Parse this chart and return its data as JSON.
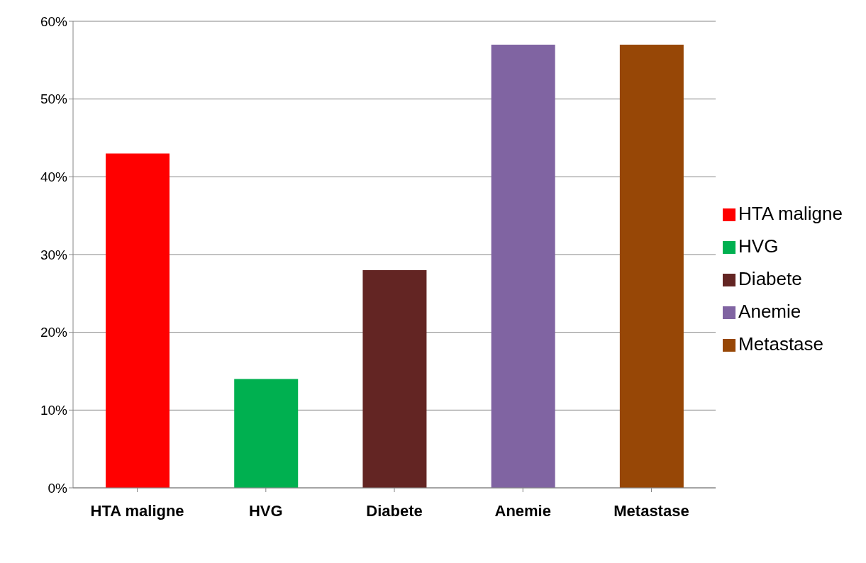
{
  "chart_data": {
    "type": "bar",
    "stacked": true,
    "categories": [
      "HTA maligne",
      "HVG",
      "Diabete",
      "Anemie",
      "Metastase"
    ],
    "series": [
      {
        "name": "HTA maligne",
        "color": "#ff0000",
        "values": [
          43,
          null,
          null,
          null,
          null
        ]
      },
      {
        "name": "HVG",
        "color": "#00b050",
        "values": [
          null,
          14,
          null,
          null,
          null
        ]
      },
      {
        "name": "Diabete",
        "color": "#632523",
        "values": [
          null,
          null,
          28,
          null,
          null
        ]
      },
      {
        "name": "Anemie",
        "color": "#8064a2",
        "values": [
          null,
          null,
          null,
          57,
          null
        ]
      },
      {
        "name": "Metastase",
        "color": "#974706",
        "values": [
          null,
          null,
          null,
          null,
          57
        ]
      }
    ],
    "ylim": [
      0,
      60
    ],
    "yticks": [
      {
        "value": 0,
        "label": "0%"
      },
      {
        "value": 10,
        "label": "10%"
      },
      {
        "value": 20,
        "label": "20%"
      },
      {
        "value": 30,
        "label": "30%"
      },
      {
        "value": 40,
        "label": "40%"
      },
      {
        "value": 50,
        "label": "50%"
      },
      {
        "value": 60,
        "label": "60%"
      }
    ],
    "grid": "y",
    "legend": "right"
  }
}
